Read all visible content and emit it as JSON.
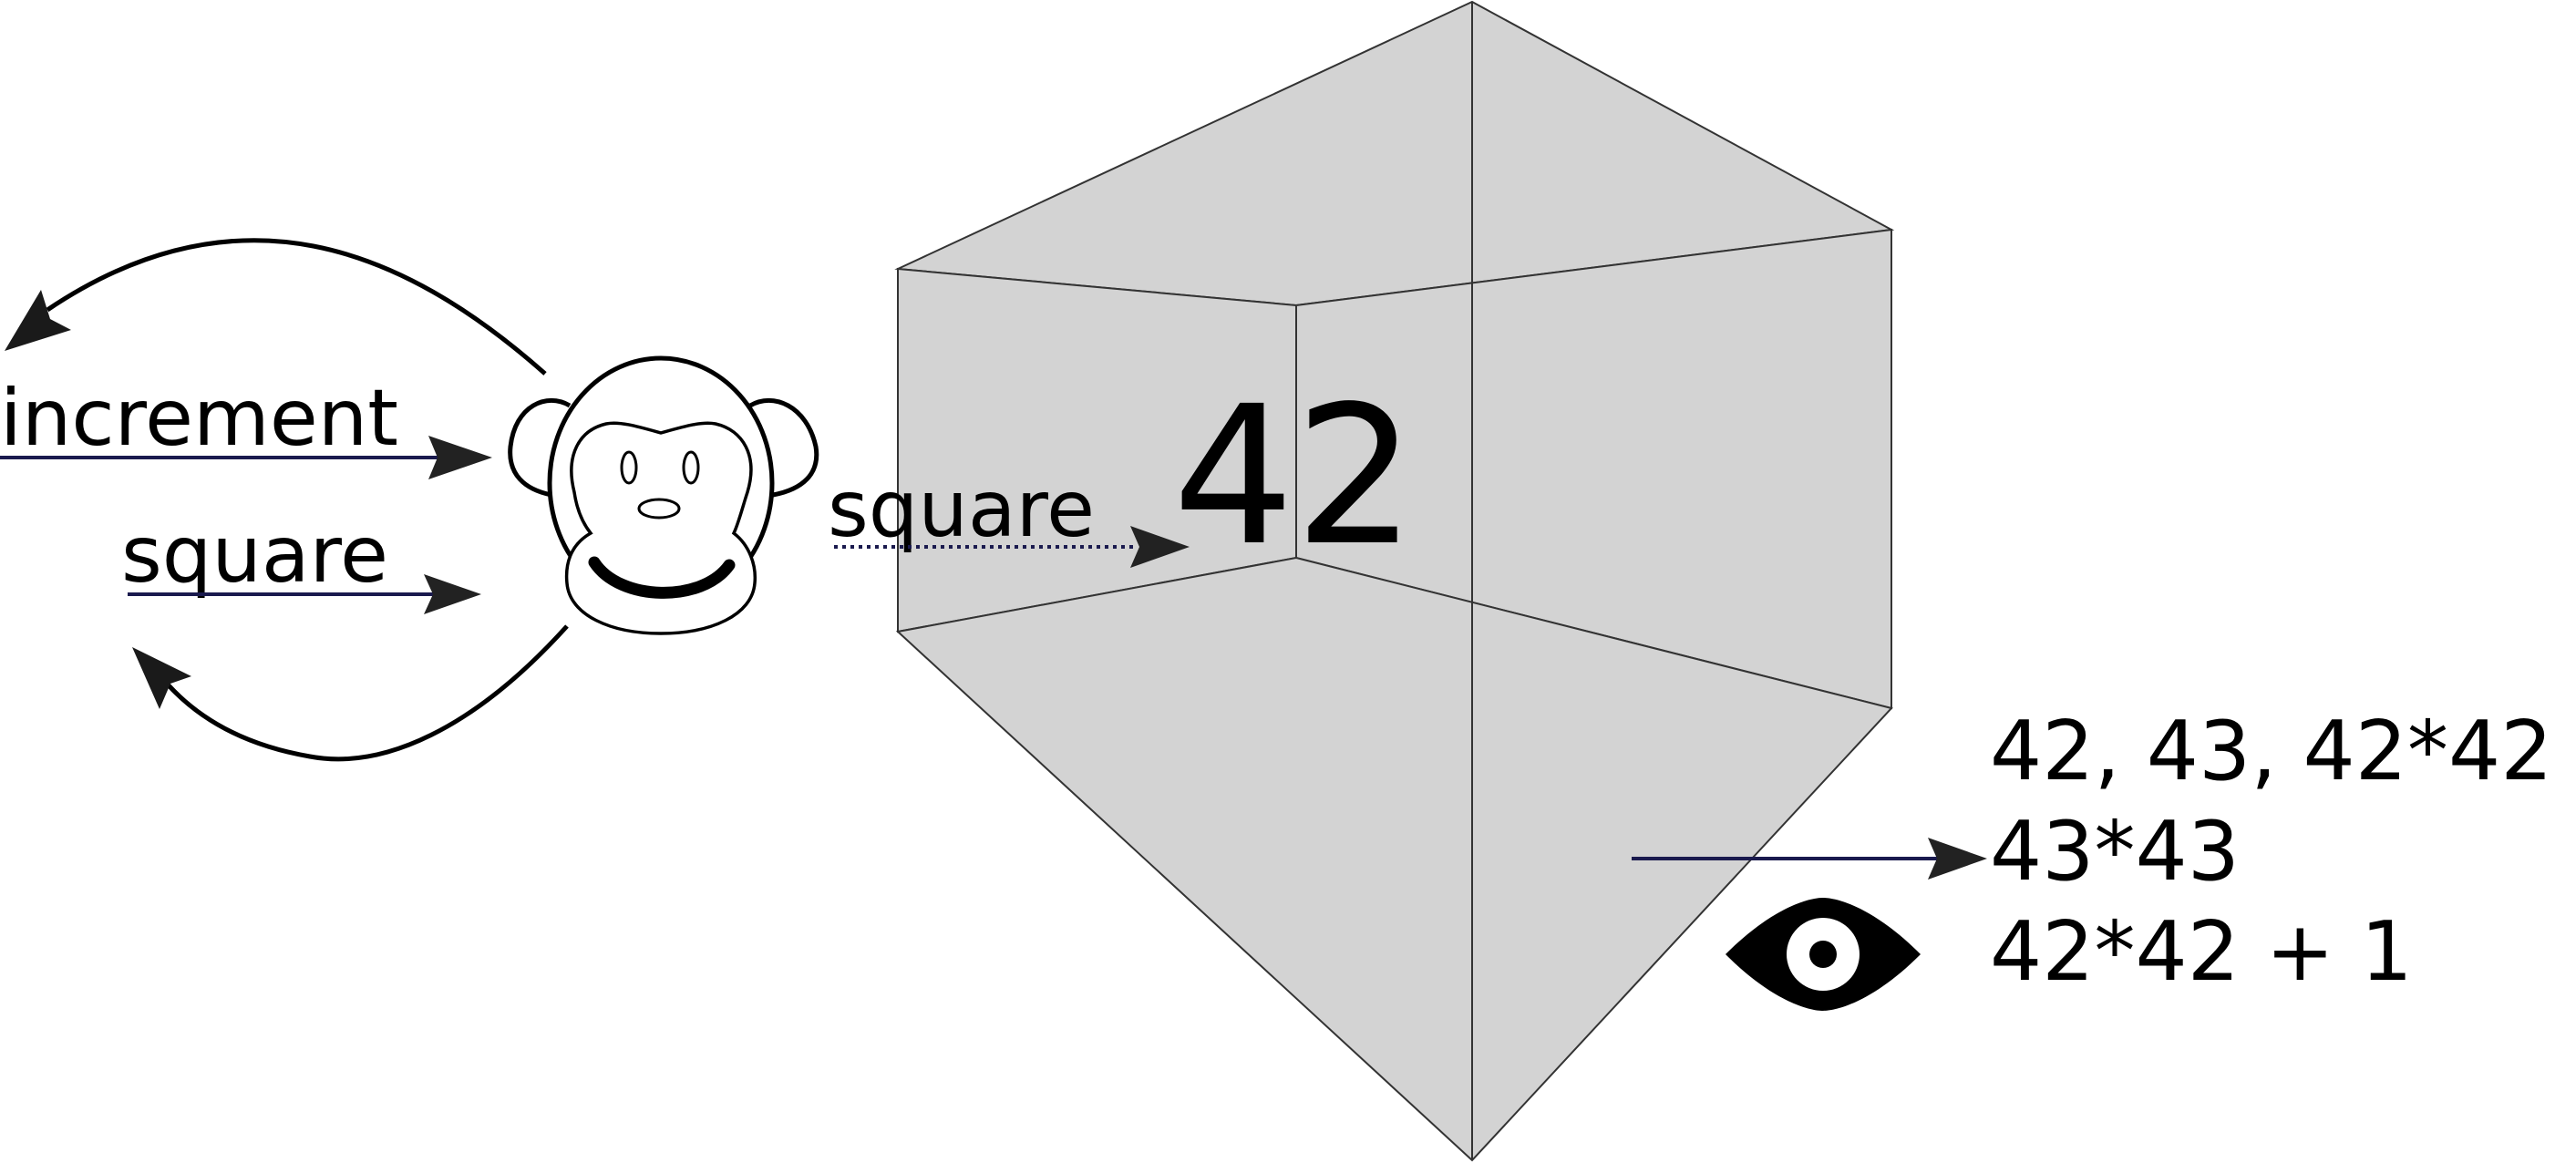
{
  "labels": {
    "increment": "increment",
    "square_left": "square",
    "square_mid": "square",
    "box_value": "42",
    "output_line_1": "42, 43, 42*42",
    "output_line_2": "43*43",
    "output_line_3": "42*42 + 1"
  },
  "icons": {
    "monkey": "monkey-face-icon",
    "eye": "eye-icon"
  },
  "colors": {
    "box_fill": "#d3d3d3",
    "box_edge": "#333333",
    "arrow_line": "#1a1a4e",
    "arrow_head": "#222222",
    "ink": "#000000"
  }
}
